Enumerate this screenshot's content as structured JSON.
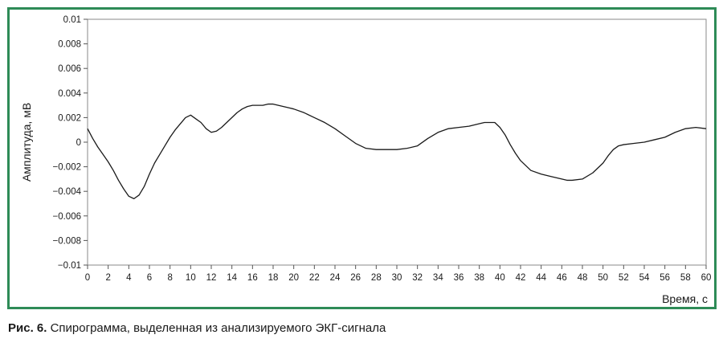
{
  "chart_data": {
    "type": "line",
    "xlabel": "Время, с",
    "ylabel": "Амплитуда, мВ",
    "xlim": [
      0,
      60
    ],
    "ylim": [
      -0.01,
      0.01
    ],
    "grid": false,
    "x_ticks": [
      0,
      2,
      4,
      6,
      8,
      10,
      12,
      14,
      16,
      18,
      20,
      22,
      24,
      26,
      28,
      30,
      32,
      34,
      36,
      38,
      40,
      42,
      44,
      46,
      48,
      50,
      52,
      54,
      56,
      58,
      60
    ],
    "x_tick_labels": [
      "0",
      "2",
      "4",
      "6",
      "8",
      "10",
      "12",
      "14",
      "16",
      "18",
      "20",
      "22",
      "24",
      "26",
      "28",
      "30",
      "32",
      "34",
      "36",
      "38",
      "40",
      "42",
      "44",
      "46",
      "48",
      "50",
      "52",
      "54",
      "56",
      "58",
      "60"
    ],
    "y_ticks": [
      0.01,
      0.008,
      0.006,
      0.004,
      0.002,
      0,
      -0.002,
      -0.004,
      -0.006,
      -0.008,
      -0.01
    ],
    "y_tick_labels": [
      "0.01",
      "0.008",
      "0.006",
      "0.004",
      "0.002",
      "0",
      "−0.002",
      "−0.004",
      "−0.006",
      "−0.008",
      "−0.01"
    ],
    "series": [
      {
        "color": "#1a1a1a",
        "x": [
          0,
          0.5,
          1,
          1.5,
          2,
          2.5,
          3,
          3.5,
          4,
          4.5,
          5,
          5.5,
          6,
          6.5,
          7,
          7.5,
          8,
          8.5,
          9,
          9.5,
          10,
          10.5,
          11,
          11.5,
          12,
          12.5,
          13,
          13.5,
          14,
          14.5,
          15,
          15.5,
          16,
          16.5,
          17,
          17.5,
          18,
          18.5,
          19,
          19.5,
          20,
          21,
          22,
          23,
          24,
          25,
          26,
          27,
          28,
          29,
          30,
          31,
          32,
          33,
          34,
          35,
          36,
          37,
          38,
          38.5,
          39,
          39.5,
          40,
          40.5,
          41,
          41.5,
          42,
          42.5,
          43,
          44,
          45,
          46,
          46.5,
          47,
          48,
          49,
          50,
          50.5,
          51,
          51.5,
          52,
          53,
          54,
          55,
          56,
          57,
          58,
          59,
          60
        ],
        "y": [
          0.0011,
          0.0003,
          -0.0004,
          -0.001,
          -0.0016,
          -0.0023,
          -0.0031,
          -0.0038,
          -0.0044,
          -0.0046,
          -0.0043,
          -0.0036,
          -0.0026,
          -0.0017,
          -0.001,
          -0.0003,
          0.0004,
          0.001,
          0.0015,
          0.002,
          0.0022,
          0.0019,
          0.0016,
          0.0011,
          0.0008,
          0.0009,
          0.0012,
          0.0016,
          0.002,
          0.0024,
          0.0027,
          0.0029,
          0.003,
          0.003,
          0.003,
          0.0031,
          0.0031,
          0.003,
          0.0029,
          0.0028,
          0.0027,
          0.0024,
          0.002,
          0.0016,
          0.0011,
          0.0005,
          -0.0001,
          -0.0005,
          -0.0006,
          -0.0006,
          -0.0006,
          -0.0005,
          -0.0003,
          0.0003,
          0.0008,
          0.0011,
          0.0012,
          0.0013,
          0.0015,
          0.0016,
          0.0016,
          0.0016,
          0.0012,
          0.0006,
          -0.0002,
          -0.0009,
          -0.0015,
          -0.0019,
          -0.0023,
          -0.0026,
          -0.0028,
          -0.003,
          -0.0031,
          -0.0031,
          -0.003,
          -0.0025,
          -0.0017,
          -0.0011,
          -0.0006,
          -0.0003,
          -0.0002,
          -0.0001,
          0,
          0.0002,
          0.0004,
          0.0008,
          0.0011,
          0.0012,
          0.0011
        ]
      }
    ]
  },
  "caption": {
    "figure_label": "Рис. 6.",
    "text": " Спирограмма, выделенная из анализируемого ЭКГ-сигнала"
  }
}
